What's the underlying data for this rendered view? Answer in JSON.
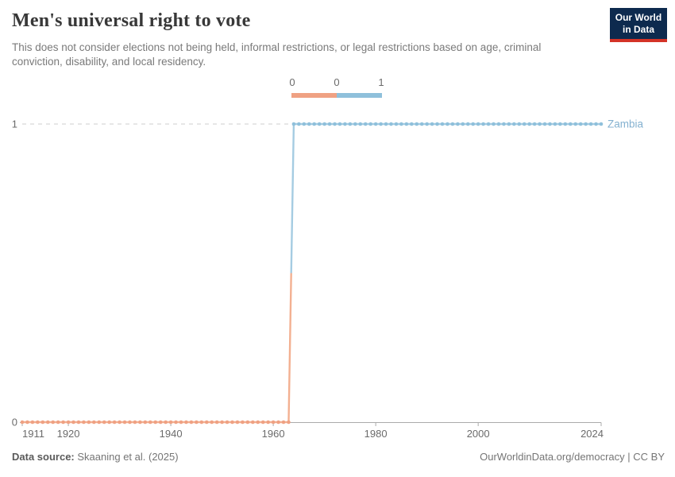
{
  "header": {
    "title": "Men's universal right to vote",
    "subtitle": "This does not consider elections not being held, informal restrictions, or legal restrictions based on age, criminal conviction, disability, and local residency.",
    "logo": {
      "line1": "Our World",
      "line2": "in Data",
      "bg_color": "#0d2a4e",
      "stripe_color": "#d43327"
    }
  },
  "legend": {
    "labels": [
      "0",
      "0",
      "1"
    ],
    "colors": [
      "#EFA183",
      "#8FC0DB"
    ]
  },
  "chart_data": {
    "type": "line",
    "subtype": "step",
    "title": "Men's universal right to vote",
    "entity": "Zambia",
    "entity_label_color": "#84B1D0",
    "xlim": [
      1911,
      2024
    ],
    "ylim": [
      0,
      1
    ],
    "x_ticks": [
      1911,
      1920,
      1940,
      1960,
      1980,
      2000,
      2024
    ],
    "y_ticks": [
      0,
      1
    ],
    "grid": "dashed-line-at-y1",
    "legend_position": "top-center",
    "series": [
      {
        "name": "value 0 segment",
        "value": 0,
        "start_year": 1911,
        "end_year": 1963,
        "color": "#EFA183",
        "line_color": "#F3B091"
      },
      {
        "name": "value 1 segment",
        "value": 1,
        "start_year": 1964,
        "end_year": 2024,
        "color": "#8FC0DB",
        "line_color": "#A5CCE2"
      }
    ],
    "axis_color": "#ABABAB",
    "grid_color": "#CFCFCF",
    "tick_label_color": "#6B6B6B"
  },
  "footer": {
    "data_source_label": "Data source:",
    "data_source_value": "Skaaning et al. (2025)",
    "link_text": "OurWorldinData.org/democracy | CC BY"
  }
}
